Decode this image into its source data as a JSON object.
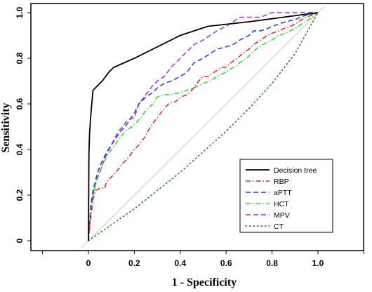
{
  "chart_data": {
    "type": "line",
    "xlabel": "1 - Specificity",
    "ylabel": "Sensitivity",
    "xlim": [
      -0.2,
      1.2
    ],
    "ylim": [
      -0.04,
      1.04
    ],
    "x_ticks": [
      0,
      0.2,
      0.4,
      0.6,
      0.8,
      1.0
    ],
    "x_tick_labels": [
      "0",
      "0.2",
      "0.4",
      "0.6",
      "0.8",
      "1.0"
    ],
    "y_ticks": [
      0,
      0.2,
      0.4,
      0.6,
      0.8,
      1.0
    ],
    "y_tick_labels": [
      "0",
      "0.2",
      "0.4",
      "0.6",
      "0.8",
      "1.0"
    ],
    "grid": false,
    "legend_position": "bottom-right",
    "reference_line": {
      "x": [
        -0.03,
        1.03
      ],
      "y": [
        -0.03,
        1.03
      ],
      "color": "#c8c8d0"
    },
    "series": [
      {
        "name": "Decision tree",
        "color": "#000000",
        "dash": "solid",
        "x": [
          0,
          0.002,
          0.005,
          0.01,
          0.02,
          0.03,
          0.06,
          0.09,
          0.11,
          0.2,
          0.3,
          0.4,
          0.52,
          0.7,
          0.85,
          1.0
        ],
        "y": [
          0,
          0.38,
          0.47,
          0.55,
          0.66,
          0.67,
          0.7,
          0.74,
          0.76,
          0.8,
          0.85,
          0.9,
          0.94,
          0.96,
          0.98,
          1.0
        ]
      },
      {
        "name": "RBP",
        "color": "#e8201c",
        "dash": "dashdot",
        "x": [
          0,
          0.01,
          0.02,
          0.03,
          0.05,
          0.07,
          0.08,
          0.1,
          0.12,
          0.15,
          0.17,
          0.2,
          0.22,
          0.25,
          0.27,
          0.3,
          0.33,
          0.35,
          0.38,
          0.4,
          0.43,
          0.45,
          0.48,
          0.5,
          0.52,
          0.55,
          0.58,
          0.6,
          0.62,
          0.65,
          0.67,
          0.7,
          0.72,
          0.75,
          0.78,
          0.8,
          0.83,
          0.85,
          0.88,
          0.9,
          0.93,
          0.95,
          1.0
        ],
        "y": [
          0,
          0.1,
          0.18,
          0.22,
          0.23,
          0.23,
          0.26,
          0.28,
          0.3,
          0.34,
          0.36,
          0.4,
          0.42,
          0.46,
          0.5,
          0.54,
          0.58,
          0.6,
          0.61,
          0.63,
          0.64,
          0.66,
          0.7,
          0.72,
          0.72,
          0.74,
          0.76,
          0.76,
          0.78,
          0.8,
          0.82,
          0.84,
          0.86,
          0.88,
          0.9,
          0.91,
          0.92,
          0.93,
          0.94,
          0.95,
          0.97,
          0.98,
          1.0
        ]
      },
      {
        "name": "aPTT",
        "color": "#1e3ad8",
        "dash": "dashed",
        "x": [
          0,
          0.01,
          0.02,
          0.04,
          0.06,
          0.08,
          0.1,
          0.12,
          0.14,
          0.16,
          0.18,
          0.2,
          0.22,
          0.25,
          0.28,
          0.3,
          0.33,
          0.36,
          0.4,
          0.43,
          0.46,
          0.5,
          0.53,
          0.56,
          0.6,
          0.63,
          0.66,
          0.7,
          0.72,
          0.75,
          0.78,
          0.8,
          0.83,
          0.86,
          0.9,
          0.95,
          1.0
        ],
        "y": [
          0,
          0.15,
          0.22,
          0.3,
          0.35,
          0.39,
          0.42,
          0.45,
          0.48,
          0.5,
          0.53,
          0.56,
          0.6,
          0.63,
          0.65,
          0.67,
          0.69,
          0.7,
          0.72,
          0.74,
          0.78,
          0.8,
          0.82,
          0.84,
          0.85,
          0.86,
          0.88,
          0.9,
          0.92,
          0.92,
          0.93,
          0.94,
          0.95,
          0.96,
          0.97,
          0.99,
          1.0
        ]
      },
      {
        "name": "HCT",
        "color": "#22dd22",
        "dash": "dashdot",
        "x": [
          0,
          0.01,
          0.02,
          0.04,
          0.06,
          0.08,
          0.1,
          0.13,
          0.16,
          0.19,
          0.22,
          0.25,
          0.28,
          0.3,
          0.33,
          0.36,
          0.4,
          0.43,
          0.46,
          0.5,
          0.53,
          0.56,
          0.6,
          0.63,
          0.66,
          0.7,
          0.73,
          0.76,
          0.8,
          0.83,
          0.86,
          0.9,
          0.93,
          0.96,
          1.0
        ],
        "y": [
          0,
          0.12,
          0.2,
          0.28,
          0.33,
          0.37,
          0.4,
          0.44,
          0.48,
          0.5,
          0.53,
          0.57,
          0.6,
          0.63,
          0.64,
          0.64,
          0.65,
          0.66,
          0.67,
          0.69,
          0.7,
          0.72,
          0.74,
          0.76,
          0.78,
          0.81,
          0.84,
          0.86,
          0.88,
          0.9,
          0.91,
          0.93,
          0.95,
          0.97,
          1.0
        ]
      },
      {
        "name": "MPV",
        "color": "#a02fe0",
        "dash": "dashed",
        "x": [
          0,
          0.01,
          0.02,
          0.03,
          0.05,
          0.07,
          0.09,
          0.11,
          0.13,
          0.15,
          0.17,
          0.2,
          0.22,
          0.25,
          0.28,
          0.3,
          0.33,
          0.36,
          0.4,
          0.43,
          0.46,
          0.5,
          0.53,
          0.56,
          0.6,
          0.63,
          0.66,
          0.7,
          0.75,
          0.8,
          0.85,
          0.9,
          1.0
        ],
        "y": [
          0,
          0.14,
          0.2,
          0.25,
          0.3,
          0.36,
          0.4,
          0.44,
          0.48,
          0.5,
          0.53,
          0.54,
          0.6,
          0.64,
          0.68,
          0.7,
          0.72,
          0.76,
          0.8,
          0.83,
          0.86,
          0.88,
          0.9,
          0.92,
          0.94,
          0.96,
          0.98,
          0.98,
          0.98,
          1.0,
          1.0,
          1.0,
          1.0
        ]
      },
      {
        "name": "CT",
        "color": "#1a7a1a",
        "dash": "dotted",
        "x": [
          0,
          0.1,
          0.2,
          0.3,
          0.4,
          0.5,
          0.6,
          0.7,
          0.8,
          0.9,
          1.0
        ],
        "y": [
          0,
          0.07,
          0.14,
          0.22,
          0.3,
          0.39,
          0.48,
          0.58,
          0.69,
          0.82,
          1.0
        ]
      }
    ]
  }
}
